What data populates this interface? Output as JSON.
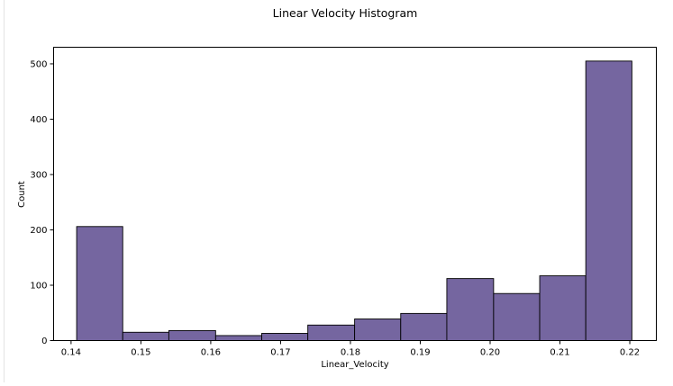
{
  "chart_data": {
    "type": "histogram",
    "title": "Linear Velocity Histogram",
    "xlabel": "Linear_Velocity",
    "ylabel": "Count",
    "xlim": [
      0.1375,
      0.2238
    ],
    "ylim": [
      0,
      530
    ],
    "xticks": [
      "0.14",
      "0.15",
      "0.16",
      "0.17",
      "0.18",
      "0.19",
      "0.20",
      "0.21",
      "0.22"
    ],
    "xtick_values": [
      0.14,
      0.15,
      0.16,
      0.17,
      0.18,
      0.19,
      0.2,
      0.21,
      0.22
    ],
    "yticks": [
      "0",
      "100",
      "200",
      "300",
      "400",
      "500"
    ],
    "ytick_values": [
      0,
      100,
      200,
      300,
      400,
      500
    ],
    "bin_edges": [
      0.1408,
      0.1474,
      0.154,
      0.1607,
      0.1673,
      0.1739,
      0.1806,
      0.1872,
      0.1938,
      0.2005,
      0.2071,
      0.2137,
      0.2203
    ],
    "counts": [
      206,
      15,
      18,
      9,
      13,
      28,
      39,
      49,
      112,
      85,
      117,
      505
    ],
    "grid": false,
    "colors": {
      "bar_fill": "#7566a0",
      "bar_edge": "#000000",
      "axes": "#000000"
    }
  }
}
